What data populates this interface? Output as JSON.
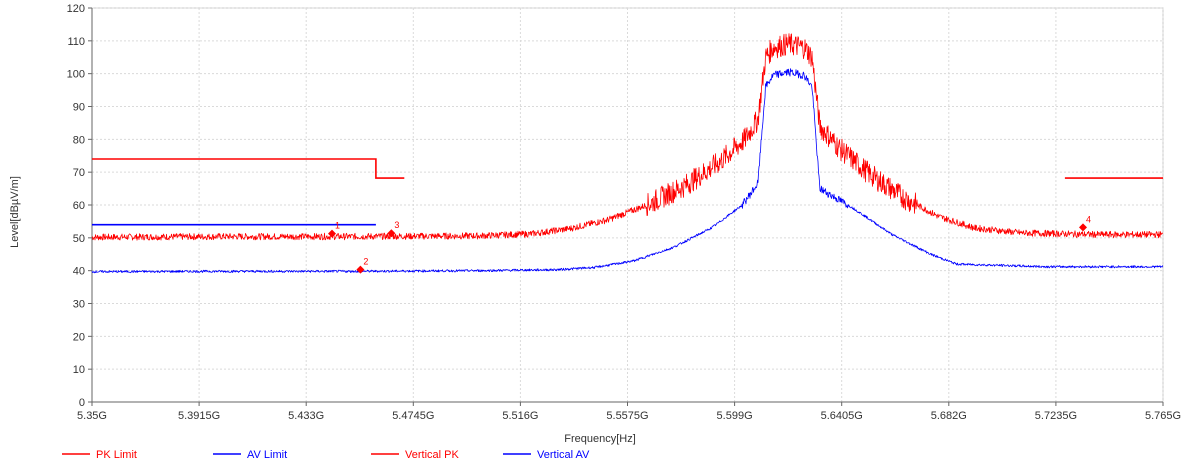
{
  "chart_data": {
    "type": "line",
    "title": "",
    "xlabel": "Frequency[Hz]",
    "ylabel": "Level[dBµV/m]",
    "xlim": [
      5.35,
      5.765
    ],
    "ylim": [
      0,
      120
    ],
    "y_ticks": [
      0,
      10,
      20,
      30,
      40,
      50,
      60,
      70,
      80,
      90,
      100,
      110,
      120
    ],
    "x_ticks": [
      5.35,
      5.3915,
      5.433,
      5.4745,
      5.516,
      5.5575,
      5.599,
      5.6405,
      5.682,
      5.7235,
      5.765
    ],
    "x_tick_labels": [
      "5.35G",
      "5.3915G",
      "5.433G",
      "5.4745G",
      "5.516G",
      "5.5575G",
      "5.599G",
      "5.6405G",
      "5.682G",
      "5.7235G",
      "5.765G"
    ],
    "grid": true,
    "legend_position": "bottom-left",
    "series": [
      {
        "name": "PK Limit",
        "color": "#ff0000",
        "segments": [
          [
            [
              5.35,
              74
            ],
            [
              5.46,
              74
            ],
            [
              5.46,
              68.2
            ],
            [
              5.471,
              68.2
            ]
          ],
          [
            [
              5.727,
              68.2
            ],
            [
              5.765,
              68.2
            ]
          ]
        ]
      },
      {
        "name": "AV Limit",
        "color": "#0000ff",
        "segments": [
          [
            [
              5.35,
              54
            ],
            [
              5.46,
              54
            ]
          ]
        ]
      },
      {
        "name": "Vertical PK",
        "color": "#ff0000",
        "points": [
          [
            5.35,
            50.2
          ],
          [
            5.4,
            50.4
          ],
          [
            5.45,
            50.4
          ],
          [
            5.5,
            50.6
          ],
          [
            5.52,
            51.2
          ],
          [
            5.535,
            52.8
          ],
          [
            5.55,
            55.5
          ],
          [
            5.565,
            60
          ],
          [
            5.58,
            66
          ],
          [
            5.593,
            73
          ],
          [
            5.603,
            80
          ],
          [
            5.608,
            86
          ],
          [
            5.611,
            105
          ],
          [
            5.614,
            108
          ],
          [
            5.62,
            109
          ],
          [
            5.626,
            108
          ],
          [
            5.629,
            105
          ],
          [
            5.632,
            84
          ],
          [
            5.64,
            77
          ],
          [
            5.652,
            69
          ],
          [
            5.665,
            62
          ],
          [
            5.678,
            56.5
          ],
          [
            5.692,
            53
          ],
          [
            5.71,
            51.5
          ],
          [
            5.74,
            51
          ],
          [
            5.765,
            51
          ]
        ]
      },
      {
        "name": "Vertical AV",
        "color": "#0000ff",
        "points": [
          [
            5.35,
            39.7
          ],
          [
            5.4,
            39.8
          ],
          [
            5.45,
            39.8
          ],
          [
            5.5,
            40
          ],
          [
            5.53,
            40.3
          ],
          [
            5.545,
            41
          ],
          [
            5.56,
            43
          ],
          [
            5.575,
            47
          ],
          [
            5.59,
            53
          ],
          [
            5.602,
            60
          ],
          [
            5.608,
            66.5
          ],
          [
            5.611,
            96
          ],
          [
            5.614,
            99.5
          ],
          [
            5.62,
            100.5
          ],
          [
            5.626,
            99.5
          ],
          [
            5.629,
            96
          ],
          [
            5.632,
            65
          ],
          [
            5.645,
            59
          ],
          [
            5.66,
            51
          ],
          [
            5.675,
            45
          ],
          [
            5.685,
            42
          ],
          [
            5.72,
            41.2
          ],
          [
            5.765,
            41.2
          ]
        ]
      }
    ],
    "markers": [
      {
        "label": "1",
        "x": 5.443,
        "y": 51.3,
        "color": "#ff0000"
      },
      {
        "label": "2",
        "x": 5.454,
        "y": 40.3,
        "color": "#ff0000"
      },
      {
        "label": "3",
        "x": 5.466,
        "y": 51.4,
        "color": "#ff0000"
      },
      {
        "label": "4",
        "x": 5.734,
        "y": 53.2,
        "color": "#ff0000"
      }
    ]
  }
}
